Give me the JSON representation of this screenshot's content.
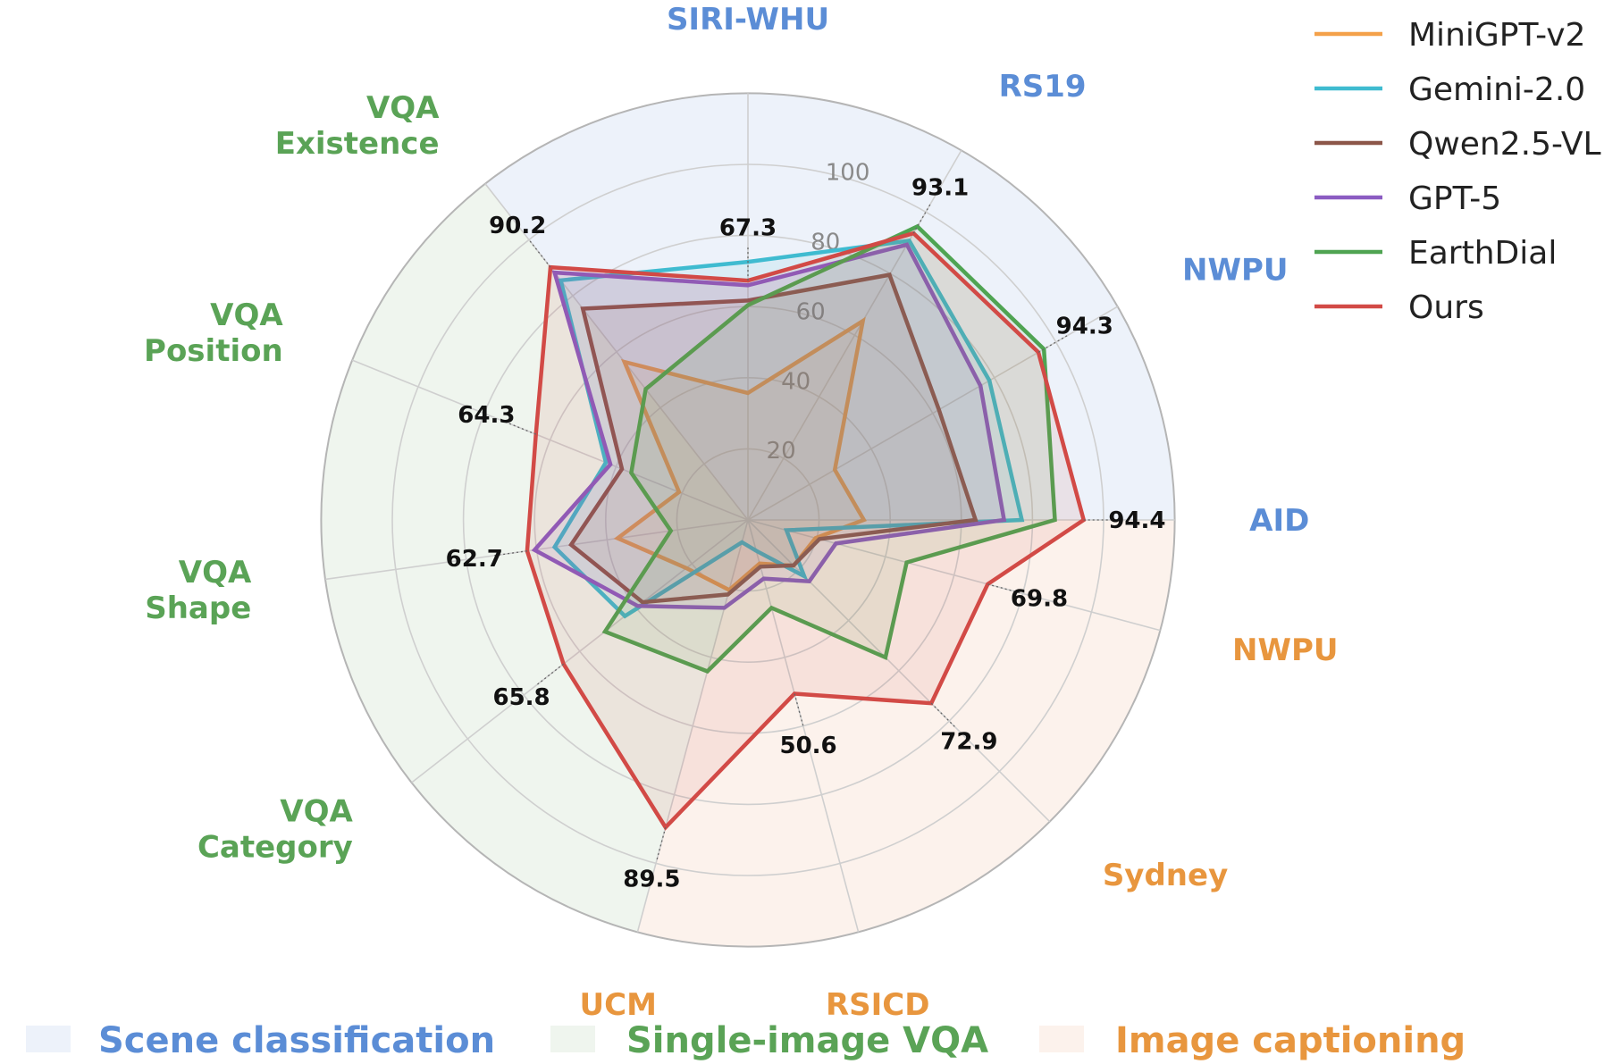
{
  "chart_data": {
    "type": "radar",
    "rlim": [
      0,
      120
    ],
    "r_ticks": [
      "20",
      "40",
      "60",
      "80",
      "100"
    ],
    "r_tick_values": [
      20,
      40,
      60,
      80,
      100
    ],
    "grid": true,
    "legend_placement": "top-right",
    "groups": [
      {
        "name": "Scene classification",
        "color": "#5b8dd6",
        "fill": "#edf2fa"
      },
      {
        "name": "Single-image VQA",
        "color": "#5aa356",
        "fill": "#eff5ee"
      },
      {
        "name": "Image captioning",
        "color": "#e8963e",
        "fill": "#fcf2ec"
      }
    ],
    "axes": [
      {
        "label": [
          "SIRI-WHU"
        ],
        "group": 0
      },
      {
        "label": [
          "RS19"
        ],
        "group": 0
      },
      {
        "label": [
          "NWPU"
        ],
        "group": 0
      },
      {
        "label": [
          "AID"
        ],
        "group": 0
      },
      {
        "label": [
          "NWPU"
        ],
        "group": 2
      },
      {
        "label": [
          "Sydney"
        ],
        "group": 2
      },
      {
        "label": [
          "RSICD"
        ],
        "group": 2
      },
      {
        "label": [
          "UCM"
        ],
        "group": 2
      },
      {
        "label": [
          "VQA",
          "Category"
        ],
        "group": 1
      },
      {
        "label": [
          "VQA",
          "Shape"
        ],
        "group": 1
      },
      {
        "label": [
          "VQA",
          "Position"
        ],
        "group": 1
      },
      {
        "label": [
          "VQA",
          "Existence"
        ],
        "group": 1
      }
    ],
    "series": [
      {
        "name": "MiniGPT-v2",
        "color": "#f4a14a",
        "values": [
          35.7,
          64.6,
          28.2,
          32.6,
          19.7,
          18.2,
          12.7,
          20.4,
          22.0,
          37.0,
          20.9,
          56.4
        ]
      },
      {
        "name": "Gemini-2.0",
        "color": "#3fbbd0",
        "values": [
          72.6,
          90.7,
          78.4,
          77.0,
          11.2,
          22.4,
          9.0,
          6.5,
          43.9,
          54.9,
          43.1,
          85.5
        ]
      },
      {
        "name": "Qwen2.5-VL",
        "color": "#8c5649",
        "values": [
          61.7,
          79.6,
          62.0,
          64.0,
          20.8,
          18.1,
          13.6,
          21.7,
          37.6,
          50.2,
          38.2,
          75.4
        ]
      },
      {
        "name": "GPT-5",
        "color": "#8b5cc2",
        "values": [
          66.0,
          89.4,
          75.5,
          72.0,
          25.6,
          24.4,
          17.1,
          25.6,
          39.3,
          60.6,
          41.7,
          88.3
        ]
      },
      {
        "name": "EarthDial",
        "color": "#4fa452",
        "values": [
          60.4,
          95.3,
          96.1,
          86.3,
          46.2,
          54.7,
          25.6,
          44.1,
          51.0,
          21.9,
          35.4,
          46.7
        ]
      },
      {
        "name": "Ours",
        "color": "#d24a46",
        "values": [
          67.3,
          93.1,
          94.3,
          94.4,
          69.8,
          72.9,
          50.6,
          89.5,
          65.8,
          62.7,
          64.3,
          90.2
        ]
      }
    ],
    "value_labels": [
      "67.3",
      "93.1",
      "94.3",
      "94.4",
      "69.8",
      "72.9",
      "50.6",
      "89.5",
      "65.8",
      "62.7",
      "64.3",
      "90.2"
    ]
  }
}
